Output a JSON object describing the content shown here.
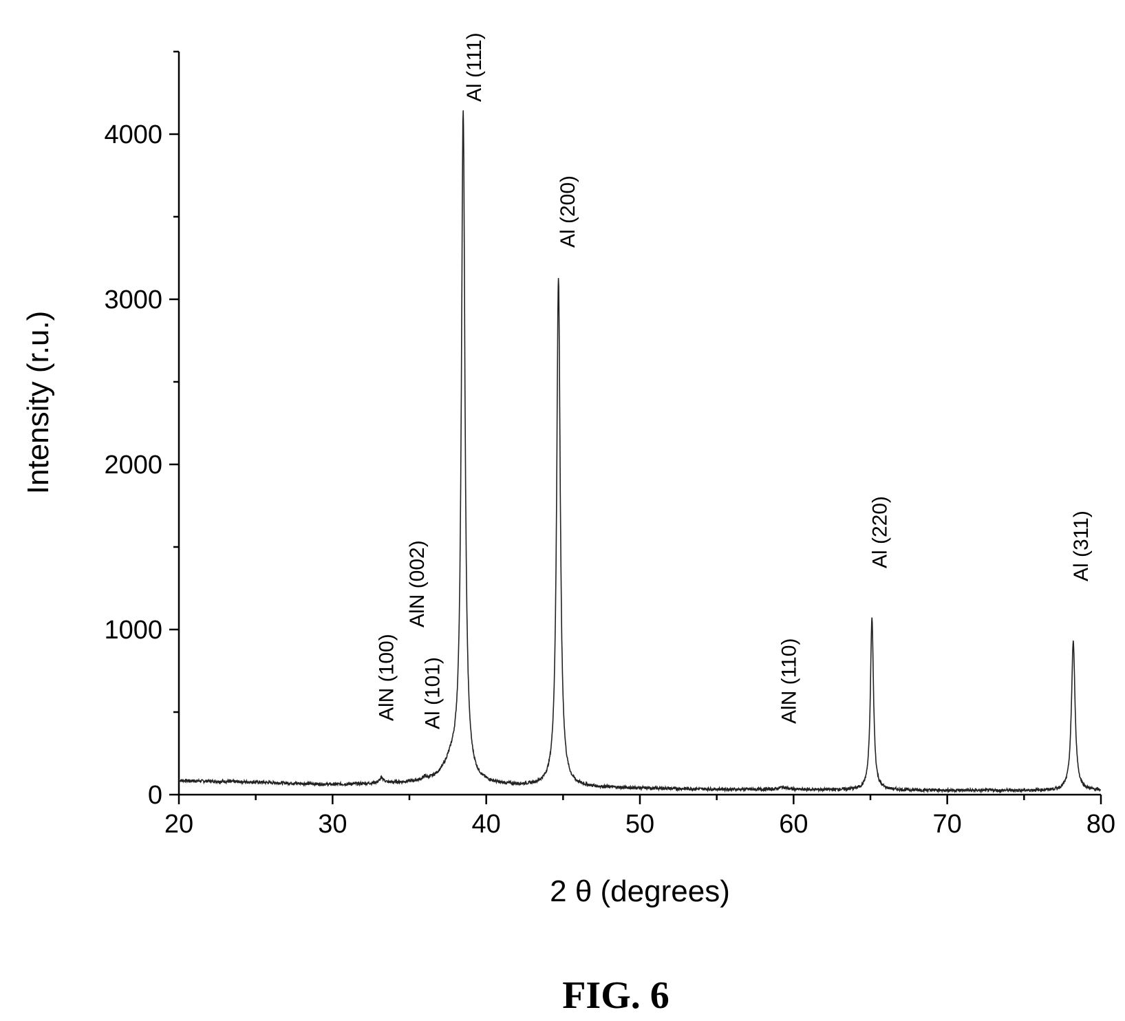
{
  "chart_data": {
    "type": "line",
    "title": "",
    "xlabel": "2 θ (degrees)",
    "ylabel": "Intensity (r.u.)",
    "xlim": [
      20,
      80
    ],
    "ylim": [
      0,
      4500
    ],
    "x_ticks": [
      20,
      30,
      40,
      50,
      60,
      70,
      80
    ],
    "y_ticks": [
      0,
      1000,
      2000,
      3000,
      4000
    ],
    "grid": false,
    "baseline": [
      [
        20,
        85
      ],
      [
        25,
        75
      ],
      [
        30,
        60
      ],
      [
        33,
        65
      ],
      [
        36,
        70
      ],
      [
        40,
        55
      ],
      [
        45,
        45
      ],
      [
        50,
        38
      ],
      [
        55,
        32
      ],
      [
        60,
        30
      ],
      [
        65,
        28
      ],
      [
        70,
        26
      ],
      [
        75,
        25
      ],
      [
        80,
        25
      ]
    ],
    "peaks": [
      {
        "x": 33.2,
        "y": 95,
        "label": "AlN (100)"
      },
      {
        "x": 36.0,
        "y": 85,
        "label": "AlN (002)"
      },
      {
        "x": 37.8,
        "y": 190,
        "label": "Al (101)"
      },
      {
        "x": 38.5,
        "y": 4080,
        "label": "Al (111)"
      },
      {
        "x": 44.7,
        "y": 3130,
        "label": "Al (200)"
      },
      {
        "x": 59.3,
        "y": 45,
        "label": "AlN (110)"
      },
      {
        "x": 65.1,
        "y": 1070,
        "label": "Al (220)"
      },
      {
        "x": 78.2,
        "y": 930,
        "label": "Al (311)"
      }
    ],
    "caption": "FIG. 6"
  }
}
